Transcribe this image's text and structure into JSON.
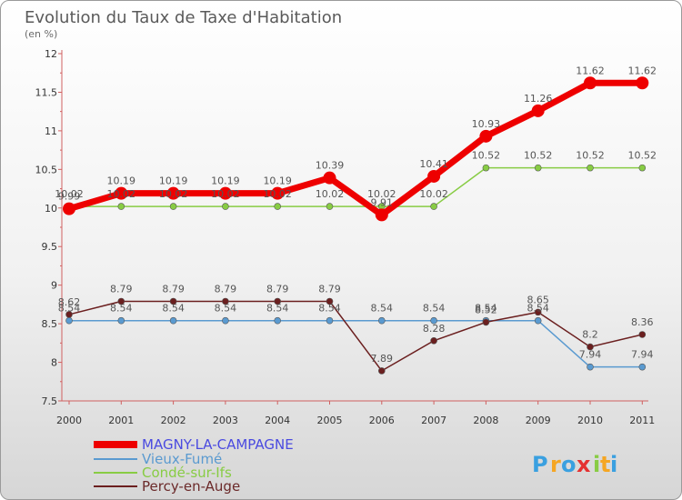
{
  "chart_data": {
    "type": "line",
    "title": "Evolution du Taux de Taxe d'Habitation",
    "subtitle": "(en %)",
    "categories": [
      "2000",
      "2001",
      "2002",
      "2003",
      "2004",
      "2005",
      "2006",
      "2007",
      "2008",
      "2009",
      "2010",
      "2011"
    ],
    "ylim": [
      7.5,
      12
    ],
    "yticks": [
      "7.5",
      "8",
      "8.5",
      "9",
      "9.5",
      "10",
      "10.5",
      "11",
      "11.5",
      "12"
    ],
    "series": [
      {
        "name": "Vieux-Fumé",
        "color": "#5a9ad0",
        "values": [
          8.54,
          8.54,
          8.54,
          8.54,
          8.54,
          8.54,
          8.54,
          8.54,
          8.54,
          8.54,
          7.94,
          7.94
        ],
        "labels": [
          "8.54",
          "8.54",
          "8.54",
          "8.54",
          "8.54",
          "8.54",
          "8.54",
          "8.54",
          "8.54",
          "8.54",
          "7.94",
          "7.94"
        ]
      },
      {
        "name": "Condé-sur-Ifs",
        "color": "#88cc44",
        "values": [
          10.02,
          10.02,
          10.02,
          10.02,
          10.02,
          10.02,
          10.02,
          10.02,
          10.52,
          10.52,
          10.52,
          10.52
        ],
        "labels": [
          "10.02",
          "10.02",
          "10.02",
          "10.02",
          "10.02",
          "10.02",
          "10.02",
          "10.02",
          "10.52",
          "10.52",
          "10.52",
          "10.52"
        ]
      },
      {
        "name": "Percy-en-Auge",
        "color": "#6b1f1f",
        "values": [
          8.62,
          8.79,
          8.79,
          8.79,
          8.79,
          8.79,
          7.89,
          8.28,
          8.52,
          8.65,
          8.2,
          8.36
        ],
        "labels": [
          "8.62",
          "8.79",
          "8.79",
          "8.79",
          "8.79",
          "8.79",
          "7.89",
          "8.28",
          "8.52",
          "8.65",
          "8.2",
          "8.36"
        ]
      },
      {
        "name": "MAGNY-LA-CAMPAGNE",
        "color": "#ee0000",
        "values": [
          9.99,
          10.19,
          10.19,
          10.19,
          10.19,
          10.39,
          9.91,
          10.41,
          10.93,
          11.26,
          11.62,
          11.62
        ],
        "labels": [
          "9.99",
          "10.19",
          "10.19",
          "10.19",
          "10.19",
          "10.39",
          "9.91",
          "10.41",
          "10.93",
          "11.26",
          "11.62",
          "11.62"
        ]
      }
    ],
    "legend": [
      "MAGNY-LA-CAMPAGNE",
      "Vieux-Fumé",
      "Condé-sur-Ifs",
      "Percy-en-Auge"
    ],
    "legend_position": "bottom-left"
  },
  "logo": {
    "letters": [
      "P",
      "r",
      "o",
      "x",
      "i",
      "t",
      "i"
    ],
    "colors": [
      "#3aa0e0",
      "#f5a623",
      "#3aa0e0",
      "#e53030",
      "#88cc44",
      "#f5a623",
      "#3aa0e0"
    ]
  }
}
